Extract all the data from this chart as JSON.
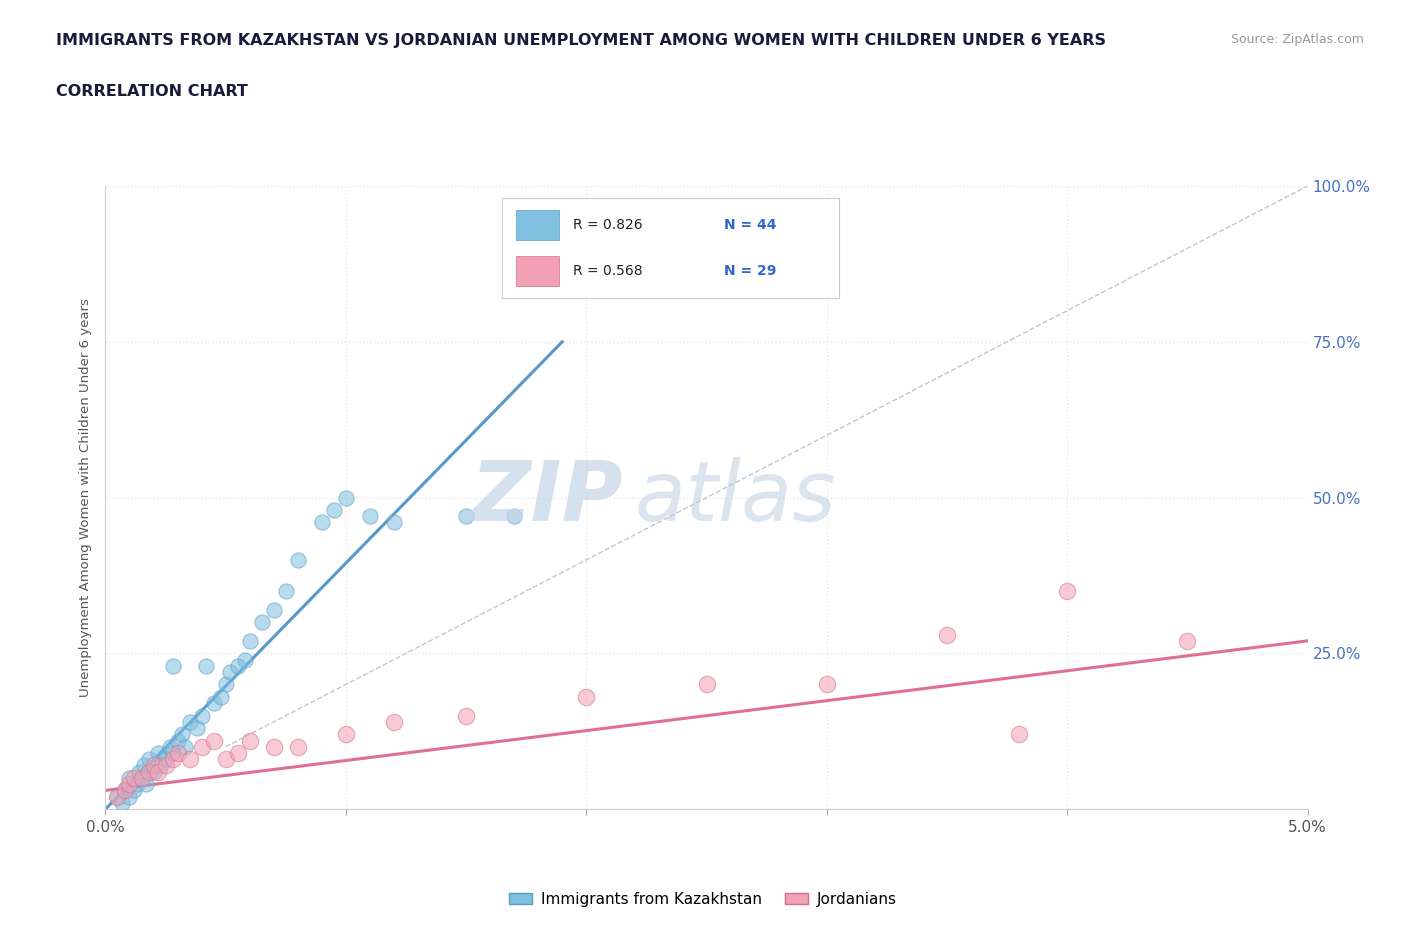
{
  "title_line1": "IMMIGRANTS FROM KAZAKHSTAN VS JORDANIAN UNEMPLOYMENT AMONG WOMEN WITH CHILDREN UNDER 6 YEARS",
  "title_line2": "CORRELATION CHART",
  "source_text": "Source: ZipAtlas.com",
  "ylabel": "Unemployment Among Women with Children Under 6 years",
  "xlim": [
    0.0,
    5.0
  ],
  "ylim": [
    0.0,
    100.0
  ],
  "blue_color": "#7fbfdf",
  "pink_color": "#f4a0b5",
  "blue_edge": "#5a9ec6",
  "pink_edge": "#d4708a",
  "R_blue": 0.826,
  "N_blue": 44,
  "R_pink": 0.568,
  "N_pink": 29,
  "watermark_zip": "ZIP",
  "watermark_atlas": "atlas",
  "watermark_color": "#d0dff0",
  "legend_label_blue": "Immigrants from Kazakhstan",
  "legend_label_pink": "Jordanians",
  "blue_scatter_x": [
    0.05,
    0.07,
    0.08,
    0.1,
    0.1,
    0.12,
    0.13,
    0.14,
    0.15,
    0.16,
    0.17,
    0.18,
    0.2,
    0.22,
    0.23,
    0.25,
    0.27,
    0.28,
    0.3,
    0.32,
    0.33,
    0.35,
    0.38,
    0.4,
    0.45,
    0.48,
    0.5,
    0.52,
    0.55,
    0.58,
    0.6,
    0.65,
    0.7,
    0.75,
    0.8,
    0.9,
    0.95,
    1.0,
    1.1,
    1.2,
    1.5,
    1.7,
    0.42,
    0.28
  ],
  "blue_scatter_y": [
    2.0,
    1.0,
    3.0,
    2.0,
    5.0,
    3.0,
    4.0,
    6.0,
    5.0,
    7.0,
    4.0,
    8.0,
    6.0,
    9.0,
    7.0,
    8.0,
    10.0,
    9.0,
    11.0,
    12.0,
    10.0,
    14.0,
    13.0,
    15.0,
    17.0,
    18.0,
    20.0,
    22.0,
    23.0,
    24.0,
    27.0,
    30.0,
    32.0,
    35.0,
    40.0,
    46.0,
    48.0,
    50.0,
    47.0,
    46.0,
    47.0,
    47.0,
    23.0,
    23.0
  ],
  "pink_scatter_x": [
    0.05,
    0.08,
    0.1,
    0.12,
    0.15,
    0.18,
    0.2,
    0.22,
    0.25,
    0.28,
    0.3,
    0.35,
    0.4,
    0.45,
    0.5,
    0.55,
    0.6,
    0.7,
    0.8,
    1.0,
    1.2,
    1.5,
    2.0,
    2.5,
    3.0,
    3.5,
    4.0,
    4.5,
    3.8
  ],
  "pink_scatter_y": [
    2.0,
    3.0,
    4.0,
    5.0,
    5.0,
    6.0,
    7.0,
    6.0,
    7.0,
    8.0,
    9.0,
    8.0,
    10.0,
    11.0,
    8.0,
    9.0,
    11.0,
    10.0,
    10.0,
    12.0,
    14.0,
    15.0,
    18.0,
    20.0,
    20.0,
    28.0,
    35.0,
    27.0,
    12.0
  ],
  "blue_line_x": [
    0.0,
    1.9
  ],
  "blue_line_y": [
    0.0,
    75.0
  ],
  "pink_line_x": [
    0.0,
    5.0
  ],
  "pink_line_y": [
    3.0,
    27.0
  ],
  "ref_line_x": [
    0.5,
    5.0
  ],
  "ref_line_y": [
    10.0,
    100.0
  ],
  "scatter_size_blue": 120,
  "scatter_size_pink": 140,
  "background_color": "#ffffff",
  "grid_color": "#e8e8e8",
  "grid_style": "dotted"
}
